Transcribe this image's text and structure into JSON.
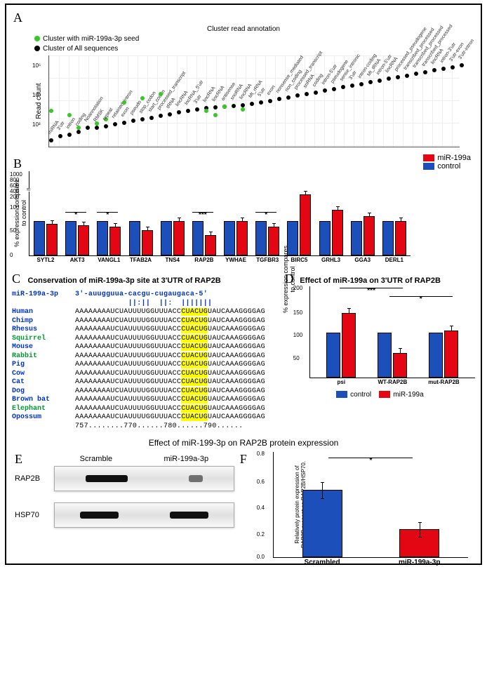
{
  "colors": {
    "mir199a": "#e30613",
    "control": "#1d4fbb",
    "green_dot": "#34c924",
    "black_dot": "#000000",
    "highlight": "#ffff00"
  },
  "panelA": {
    "label": "A",
    "title": "Cluster read annotation",
    "legend": [
      {
        "label": "Cluster with miR-199a-3p seed",
        "color": "#34c924"
      },
      {
        "label": "Cluster of All sequences",
        "color": "#000000"
      }
    ],
    "ylabel": "Read count",
    "yticks": [
      "10⁵",
      "10⁴",
      "10³"
    ],
    "categories": [
      "miRNA",
      "3'utr",
      "intron",
      "coding",
      "Noannotation",
      "RMSK",
      "repeat",
      "retained_intron",
      "exon",
      "pseudo",
      "stop_codon",
      "start_codon",
      "processed_transcript",
      "tRNA",
      "lincRNA",
      "lncRNA_5'utr",
      "3'utr",
      "lincRNA",
      "lincRNA",
      "antisense",
      "snoRNA",
      "lincRNA",
      "Mt_rRNA",
      "5'utr",
      "exon",
      "nonsense_mediated",
      "non_coding",
      "processed_transcript",
      "snRNA",
      "coding",
      "intron-5'utr",
      "pseudogene",
      "sense_intronic",
      "3'utr",
      "intron-coding",
      "Mt_tRNA",
      "intron-5'utr",
      "lincRNA",
      "processed_pseudogene",
      "transcribed_processed",
      "transcribed_processed",
      "transcribed_processed",
      "lincRNA",
      "intron-3'utr",
      "3'utr-exon",
      "3'utr-intron"
    ],
    "all_values": [
      0.05,
      0.1,
      0.12,
      0.15,
      0.2,
      0.2,
      0.22,
      0.24,
      0.26,
      0.28,
      0.3,
      0.32,
      0.34,
      0.36,
      0.38,
      0.4,
      0.42,
      0.43,
      0.44,
      0.45,
      0.46,
      0.47,
      0.48,
      0.5,
      0.52,
      0.54,
      0.56,
      0.58,
      0.6,
      0.62,
      0.64,
      0.66,
      0.68,
      0.7,
      0.72,
      0.74,
      0.76,
      0.78,
      0.8,
      0.82,
      0.84,
      0.86,
      0.88,
      0.9,
      0.92,
      0.94
    ],
    "seed_values": {
      "0": 0.4,
      "2": 0.35,
      "3": 0.2,
      "5": 0.25,
      "6": 0.3,
      "8": 0.5,
      "10": 0.55,
      "12": 0.6,
      "17": 0.4,
      "18": 0.35,
      "19": 0.45,
      "21": 0.42
    }
  },
  "panelB": {
    "label": "B",
    "ylabel": "% expression compares\nto control",
    "yticks_upper": [
      "1000",
      "800",
      "600",
      "400",
      "200"
    ],
    "yticks_lower": [
      "100",
      "50",
      "0"
    ],
    "legend": [
      {
        "label": "miR-199a",
        "color": "#e30613"
      },
      {
        "label": "control",
        "color": "#1d4fbb"
      }
    ],
    "genes": [
      {
        "name": "SYTL2",
        "ctrl": 100,
        "mir": 93,
        "sig": ""
      },
      {
        "name": "AKT3",
        "ctrl": 100,
        "mir": 88,
        "sig": "*"
      },
      {
        "name": "VANGL1",
        "ctrl": 100,
        "mir": 83,
        "sig": "*"
      },
      {
        "name": "TFAB2A",
        "ctrl": 100,
        "mir": 73,
        "sig": ""
      },
      {
        "name": "TNS4",
        "ctrl": 100,
        "mir": 100,
        "sig": ""
      },
      {
        "name": "RAP2B",
        "ctrl": 100,
        "mir": 58,
        "sig": "***"
      },
      {
        "name": "YWHAE",
        "ctrl": 100,
        "mir": 100,
        "sig": ""
      },
      {
        "name": "TGFBR3",
        "ctrl": 100,
        "mir": 84,
        "sig": "*"
      },
      {
        "name": "BIRC5",
        "ctrl": 100,
        "mir": 350,
        "sig": ""
      },
      {
        "name": "GRHL3",
        "ctrl": 100,
        "mir": 135,
        "sig": ""
      },
      {
        "name": "GGA3",
        "ctrl": 100,
        "mir": 115,
        "sig": ""
      },
      {
        "name": "DERL1",
        "ctrl": 100,
        "mir": 100,
        "sig": ""
      }
    ]
  },
  "panelC": {
    "label": "C",
    "title": "Conservation of miR-199a-3p site at 3'UTR of RAP2B",
    "mir_header": "miR-199a-3p 3'-auugguua-cacgu-cugaugaca-5'",
    "aln_marks": "            ||:||  ||:  |||||||",
    "species": [
      {
        "name": "Human",
        "color": "blue"
      },
      {
        "name": "Chimp",
        "color": "blue"
      },
      {
        "name": "Rhesus",
        "color": "blue"
      },
      {
        "name": "Squirrel",
        "color": "green"
      },
      {
        "name": "Mouse",
        "color": "blue"
      },
      {
        "name": "Rabbit",
        "color": "green"
      },
      {
        "name": "Pig",
        "color": "blue"
      },
      {
        "name": "Cow",
        "color": "blue"
      },
      {
        "name": "Cat",
        "color": "blue"
      },
      {
        "name": "Dog",
        "color": "blue"
      },
      {
        "name": "Brown bat",
        "color": "blue"
      },
      {
        "name": "Elephant",
        "color": "green"
      },
      {
        "name": "Opossum",
        "color": "blue"
      }
    ],
    "seq_pre": "AAAAAAAAUCUAUUUUGGUUUACC",
    "seq_hl": "CUACUG",
    "seq_post": "UAUCAAAGGGGAG",
    "seq_post_alt": "UAUCAAAGGGGAG",
    "ruler": "757........770......780......790......"
  },
  "panelD": {
    "label": "D",
    "title": "Effect of miR-199a on 3'UTR of RAP2B",
    "ylabel": "% expression compares\nto control",
    "yticks": [
      "200",
      "150",
      "100",
      "50"
    ],
    "groups": [
      {
        "name": "psi",
        "ctrl": 100,
        "mir": 145
      },
      {
        "name": "WT-RAP2B",
        "ctrl": 100,
        "mir": 54
      },
      {
        "name": "mut-RAP2B",
        "ctrl": 100,
        "mir": 105
      }
    ],
    "sig_marks": [
      "***",
      "*"
    ],
    "legend": [
      {
        "label": "control",
        "color": "#1d4fbb"
      },
      {
        "label": "miR-199a",
        "color": "#e30613"
      }
    ]
  },
  "titleEF": "Effect of miR-199-3p on RAP2B protein expression",
  "panelE": {
    "label": "E",
    "cols": [
      "Scramble",
      "miR-199a-3p"
    ],
    "rows": [
      {
        "label": "RAP2B",
        "bands": [
          60,
          20
        ]
      },
      {
        "label": "HSP70",
        "bands": [
          55,
          55
        ]
      }
    ]
  },
  "panelF": {
    "label": "F",
    "ylabel": "Relatively protein expression of\nRAP2B present as RAP2B/HSP70.",
    "yticks": [
      "0.8",
      "0.6",
      "0.4",
      "0.2",
      "0.0"
    ],
    "bars": [
      {
        "name": "Scrambled",
        "value": 0.52,
        "err": 0.13,
        "color": "#1d4fbb"
      },
      {
        "name": "miR-199a-3p",
        "value": 0.21,
        "err": 0.12,
        "color": "#e30613"
      }
    ],
    "sig": "*"
  }
}
